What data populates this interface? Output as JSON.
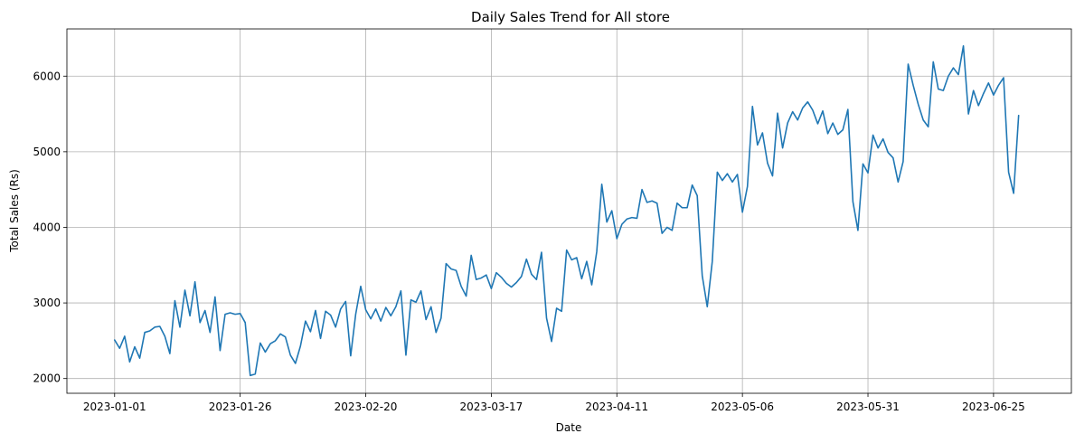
{
  "chart_data": {
    "type": "line",
    "title": "Daily Sales Trend for All store",
    "xlabel": "Date",
    "ylabel": "Total Sales (Rs)",
    "x_start": "2023-01-01",
    "x_ticks": [
      "2023-01-01",
      "2023-01-26",
      "2023-02-20",
      "2023-03-17",
      "2023-04-11",
      "2023-05-06",
      "2023-05-31",
      "2023-06-25"
    ],
    "y_ticks": [
      2000,
      3000,
      4000,
      5000,
      6000
    ],
    "ylim": [
      1805,
      6625
    ],
    "xlim_days": [
      -9.5,
      190.5
    ],
    "grid": true,
    "color": "#1f77b4",
    "series": [
      {
        "values": [
          2510,
          2400,
          2560,
          2220,
          2420,
          2270,
          2610,
          2630,
          2680,
          2690,
          2560,
          2330,
          3030,
          2680,
          3170,
          2830,
          3280,
          2740,
          2900,
          2610,
          3080,
          2370,
          2850,
          2870,
          2850,
          2860,
          2740,
          2040,
          2060,
          2470,
          2350,
          2460,
          2500,
          2590,
          2550,
          2310,
          2200,
          2430,
          2760,
          2620,
          2900,
          2530,
          2890,
          2840,
          2680,
          2920,
          3020,
          2300,
          2850,
          3220,
          2910,
          2790,
          2920,
          2760,
          2940,
          2830,
          2950,
          3160,
          2310,
          3040,
          3010,
          3160,
          2780,
          2950,
          2610,
          2800,
          3520,
          3450,
          3430,
          3220,
          3090,
          3630,
          3310,
          3330,
          3370,
          3190,
          3400,
          3340,
          3260,
          3210,
          3270,
          3350,
          3580,
          3380,
          3310,
          3670,
          2800,
          2490,
          2930,
          2890,
          3700,
          3570,
          3600,
          3320,
          3550,
          3240,
          3680,
          4570,
          4070,
          4220,
          3850,
          4040,
          4110,
          4130,
          4120,
          4500,
          4330,
          4350,
          4320,
          3920,
          4000,
          3960,
          4320,
          4260,
          4260,
          4560,
          4420,
          3360,
          2950,
          3550,
          4730,
          4620,
          4710,
          4600,
          4700,
          4200,
          4540,
          5600,
          5090,
          5250,
          4850,
          4680,
          5510,
          5050,
          5380,
          5530,
          5420,
          5580,
          5660,
          5550,
          5370,
          5540,
          5240,
          5380,
          5230,
          5290,
          5560,
          4340,
          3960,
          4840,
          4720,
          5220,
          5050,
          5170,
          4990,
          4920,
          4600,
          4870,
          6160,
          5880,
          5630,
          5420,
          5330,
          6190,
          5830,
          5810,
          6000,
          6110,
          6020,
          6400,
          5500,
          5810,
          5610,
          5770,
          5910,
          5750,
          5880,
          5980,
          4730,
          4450,
          5480
        ]
      }
    ]
  }
}
